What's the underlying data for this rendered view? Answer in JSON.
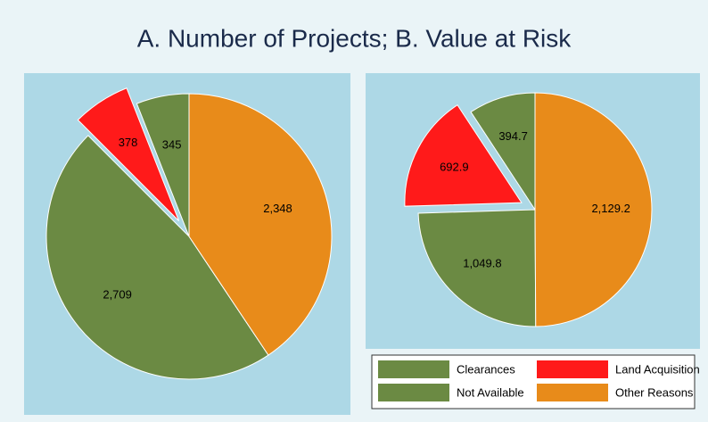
{
  "title": "A. Number of Projects; B. Value at Risk",
  "legend_position": "bottom-right",
  "chart_data": [
    {
      "type": "pie",
      "categories": [
        "Clearances",
        "Land Acquisition",
        "Not Available",
        "Other Reasons"
      ],
      "values": [
        345,
        378,
        2709,
        2348
      ],
      "value_labels": [
        "345",
        "378",
        "2,709",
        "2,348"
      ],
      "colors": [
        "#6b8a43",
        "#ff1a1a",
        "#6b8a43",
        "#e88b1a"
      ],
      "explode": [
        1
      ]
    },
    {
      "type": "pie",
      "categories": [
        "Clearances",
        "Land Acquisition",
        "Not Available",
        "Other Reasons"
      ],
      "values": [
        394.7,
        692.9,
        1049.8,
        2129.2
      ],
      "value_labels": [
        "394.7",
        "692.9",
        "1,049.8",
        "2,129.2"
      ],
      "colors": [
        "#6b8a43",
        "#ff1a1a",
        "#6b8a43",
        "#e88b1a"
      ],
      "explode": [
        1
      ]
    }
  ]
}
